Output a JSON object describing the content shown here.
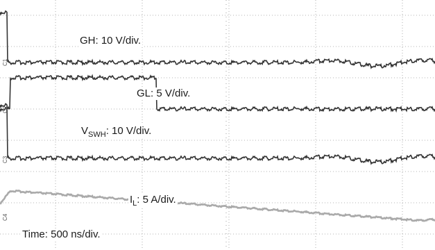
{
  "chart_data": {
    "type": "line",
    "title": "",
    "labels": {
      "gh": {
        "text": "GH: 10 V/div."
      },
      "gl": {
        "text": "GL: 5 V/div."
      },
      "vswh": {
        "pre": "V",
        "sub": "SWH",
        "post": ": 10 V/div."
      },
      "il": {
        "pre": "I",
        "sub": "L",
        "post": ": 5 A/div."
      },
      "time": {
        "text": "Time: 500 ns/div."
      }
    },
    "channel_markers": [
      "C1",
      "C2",
      "C3",
      "C4"
    ],
    "grid": {
      "divisions_x": 10,
      "divisions_y": 8,
      "style": "dotted"
    },
    "x_unit": "ns",
    "x_per_div_ns": 500,
    "period_ns": 2500,
    "series": [
      {
        "id": "gh",
        "color": "#333333",
        "low_div": 0,
        "high_div": 1.6,
        "pulses": [
          {
            "start_ns": 290,
            "end_ns": 360
          },
          {
            "start_ns": 2790,
            "end_ns": 2860
          },
          {
            "start_ns": 5290,
            "end_ns": 5360
          }
        ],
        "ringing": [
          {
            "start_ns": 1200,
            "end_ns": 1650
          },
          {
            "start_ns": 3700,
            "end_ns": 4150
          }
        ]
      },
      {
        "id": "gl",
        "color": "#333333",
        "low_div": 0,
        "high_div": 1.0,
        "pulses": [
          {
            "start_ns": 370,
            "end_ns": 790
          },
          {
            "start_ns": 2870,
            "end_ns": 3290
          },
          {
            "start_ns": 5370,
            "end_ns": 5500
          }
        ]
      },
      {
        "id": "vswh",
        "color": "#333333",
        "low_div": 0,
        "high_div": 1.7,
        "pulses": [
          {
            "start_ns": 290,
            "end_ns": 360
          },
          {
            "start_ns": 2790,
            "end_ns": 2860
          },
          {
            "start_ns": 5290,
            "end_ns": 5360
          }
        ],
        "ringing": [
          {
            "start_ns": 1200,
            "end_ns": 1650
          },
          {
            "start_ns": 3700,
            "end_ns": 4150
          }
        ]
      },
      {
        "id": "il",
        "color": "#aaaaaa",
        "valley_div": 0,
        "peak_div": 0.95,
        "peaks_ns": [
          370,
          2870,
          5370
        ],
        "valleys_ns": [
          1550,
          4050
        ]
      }
    ]
  }
}
